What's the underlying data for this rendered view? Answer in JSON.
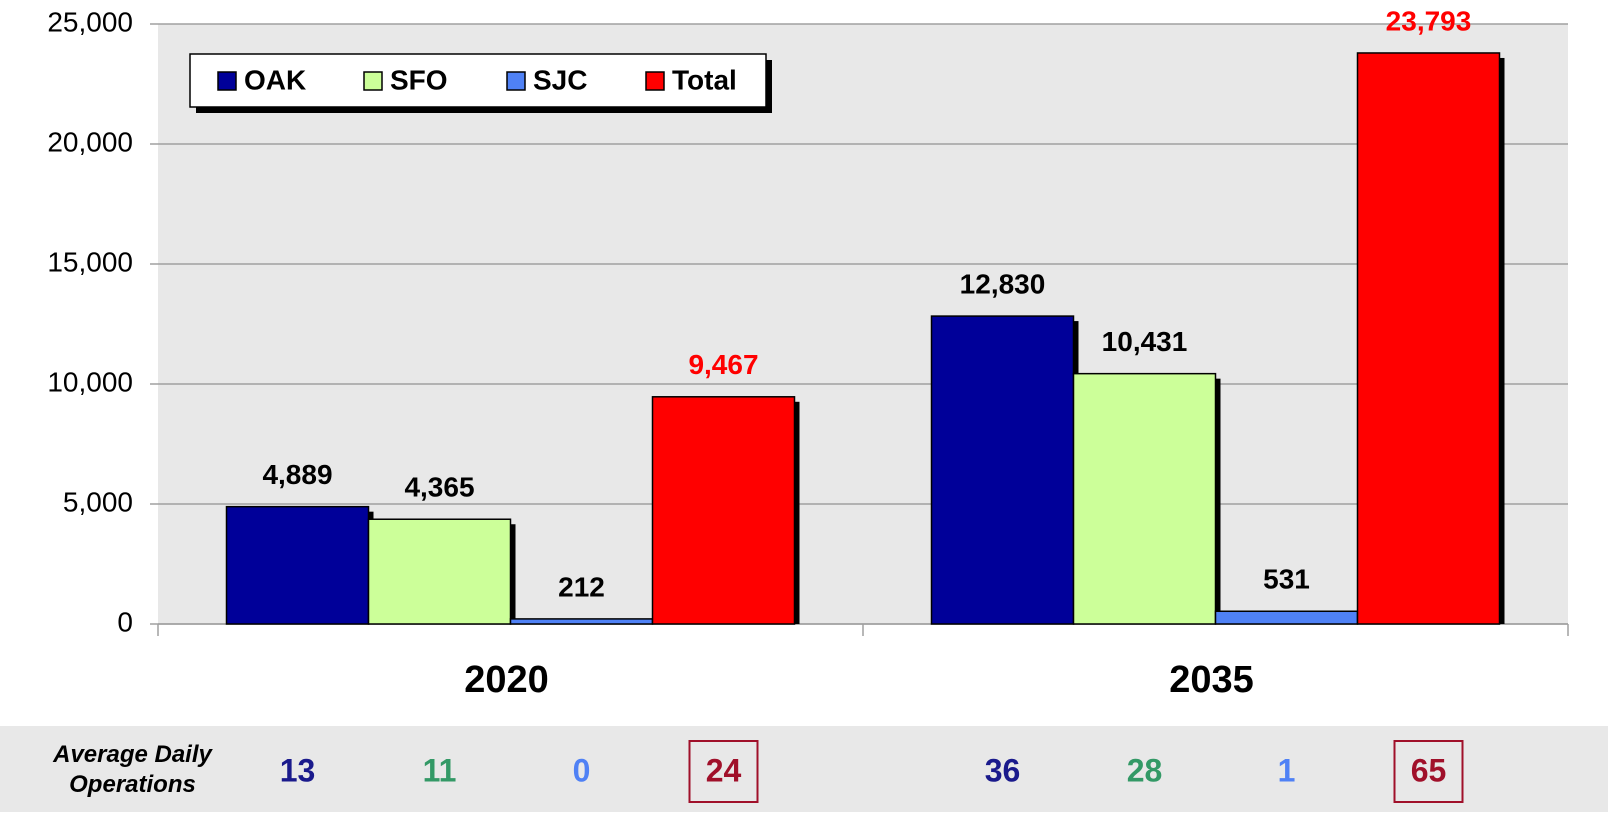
{
  "chart_data": {
    "type": "bar",
    "categories": [
      "2020",
      "2035"
    ],
    "series": [
      {
        "name": "OAK",
        "color": "#000099",
        "label_color": "#000000",
        "values": [
          4889,
          12830
        ],
        "value_labels": [
          "4,889",
          "12,830"
        ],
        "daily_operations": [
          13,
          36
        ],
        "daily_color": "#1a1a8c"
      },
      {
        "name": "SFO",
        "color": "#ccff99",
        "label_color": "#000000",
        "values": [
          4365,
          10431
        ],
        "value_labels": [
          "4,365",
          "10,431"
        ],
        "daily_operations": [
          11,
          28
        ],
        "daily_color": "#339966"
      },
      {
        "name": "SJC",
        "color": "#4f81f5",
        "label_color": "#000000",
        "values": [
          212,
          531
        ],
        "value_labels": [
          "212",
          "531"
        ],
        "daily_operations": [
          0,
          1
        ],
        "daily_color": "#4f81f5"
      },
      {
        "name": "Total",
        "color": "#ff0000",
        "label_color": "#ff0000",
        "values": [
          9467,
          23793
        ],
        "value_labels": [
          "9,467",
          "23,793"
        ],
        "daily_operations": [
          24,
          65
        ],
        "daily_color": "#a0102a"
      }
    ],
    "daily_operations_label": "Average Daily Operations",
    "ylim": [
      0,
      25000
    ],
    "yticks": [
      0,
      {
        "value": 5000,
        "label": "5,000"
      },
      {
        "value": 10000,
        "label": "10,000"
      },
      {
        "value": 15000,
        "label": "15,000"
      },
      {
        "value": 20000,
        "label": "20,000"
      },
      {
        "value": 25000,
        "label": "25,000"
      }
    ],
    "grid": true,
    "legend": "top-left"
  }
}
